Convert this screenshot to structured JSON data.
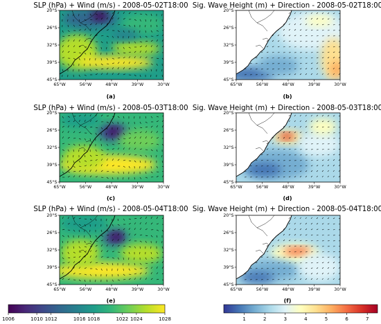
{
  "figure": {
    "panels": [
      {
        "id": "a",
        "title": "SLP (hPa) + Wind (m/s) - 2008-05-02T18:00",
        "label": "(a)",
        "variable": "slp",
        "time": "2008-05-02T18:00"
      },
      {
        "id": "b",
        "title": "Sig. Wave Height (m) + Direction - 2008-05-02T18:00",
        "label": "(b)",
        "variable": "hs",
        "time": "2008-05-02T18:00"
      },
      {
        "id": "c",
        "title": "SLP (hPa) + Wind (m/s) - 2008-05-03T18:00",
        "label": "(c)",
        "variable": "slp",
        "time": "2008-05-03T18:00"
      },
      {
        "id": "d",
        "title": "Sig. Wave Height (m) + Direction - 2008-05-03T18:00",
        "label": "(d)",
        "variable": "hs",
        "time": "2008-05-03T18:00"
      },
      {
        "id": "e",
        "title": "SLP (hPa) + Wind (m/s) - 2008-05-04T18:00",
        "label": "(e)",
        "variable": "slp",
        "time": "2008-05-04T18:00"
      },
      {
        "id": "f",
        "title": "Sig. Wave Height (m) + Direction - 2008-05-04T18:00",
        "label": "(f)",
        "variable": "hs",
        "time": "2008-05-04T18:00"
      }
    ],
    "x_ticks": [
      "65°W",
      "56°W",
      "48°W",
      "39°W",
      "30°W"
    ],
    "y_ticks": [
      "20°S",
      "26°S",
      "32°S",
      "39°S",
      "45°S"
    ]
  },
  "chart_data": [
    {
      "type": "heatmap",
      "title": "SLP (hPa) + Wind (m/s)",
      "x_range_lon": [
        -65,
        -30
      ],
      "y_range_lat": [
        -45,
        -20
      ],
      "colormap": "viridis",
      "colorbar": {
        "ticks": [
          1006,
          1010,
          1012,
          1016,
          1018,
          1022,
          1024,
          1028
        ],
        "range": [
          1006,
          1028
        ]
      },
      "times": [
        "2008-05-02T18:00",
        "2008-05-03T18:00",
        "2008-05-04T18:00"
      ],
      "overlay": "wind vectors"
    },
    {
      "type": "heatmap",
      "title": "Sig. Wave Height (m) + Direction",
      "x_range_lon": [
        -65,
        -30
      ],
      "y_range_lat": [
        -45,
        -20
      ],
      "colormap": "RdYlBu_r",
      "colorbar": {
        "ticks": [
          1,
          2,
          3,
          4,
          5,
          6,
          7
        ],
        "range": [
          0,
          7.5
        ]
      },
      "times": [
        "2008-05-02T18:00",
        "2008-05-03T18:00",
        "2008-05-04T18:00"
      ],
      "overlay": "wave direction arrows"
    }
  ],
  "colors": {
    "viridis": [
      "#440154",
      "#482878",
      "#3e4989",
      "#31688e",
      "#26828e",
      "#1f9e89",
      "#35b779",
      "#6ece58",
      "#b5de2b",
      "#fde725"
    ],
    "rdylbu": [
      "#313695",
      "#4575b4",
      "#74add1",
      "#abd9e9",
      "#e0f3f8",
      "#ffffbf",
      "#fee090",
      "#fdae61",
      "#f46d43",
      "#d73027",
      "#a50026"
    ],
    "land": "#ffffff"
  }
}
